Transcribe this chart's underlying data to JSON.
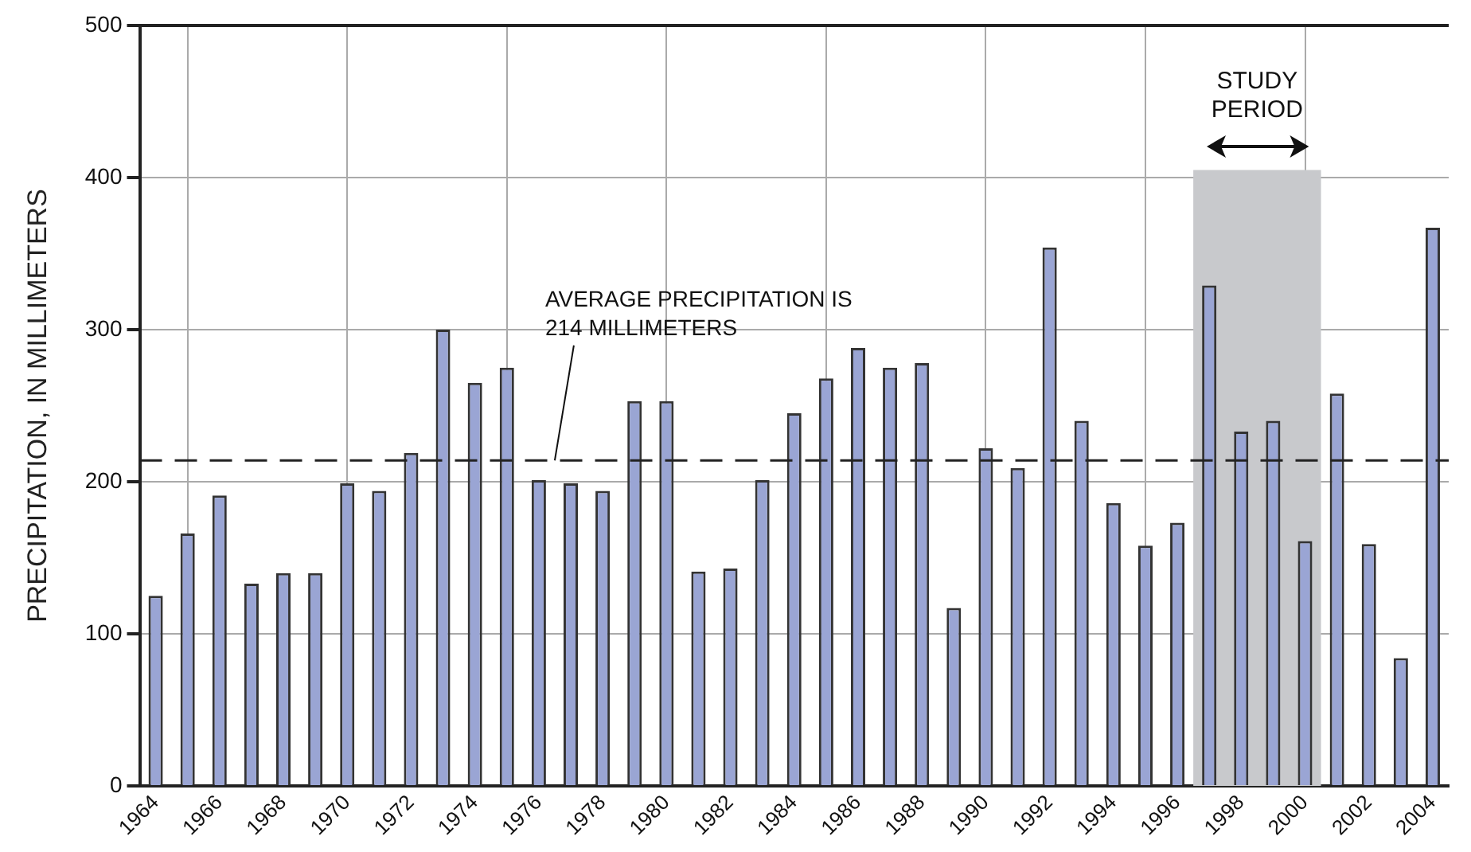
{
  "chart_data": {
    "type": "bar",
    "ylabel": "PRECIPITATION, IN MILLIMETERS",
    "categories": [
      "1964",
      null,
      "1966",
      null,
      "1968",
      null,
      "1970",
      null,
      "1972",
      null,
      "1974",
      null,
      "1976",
      null,
      "1978",
      null,
      "1980",
      null,
      "1982",
      null,
      "1984",
      null,
      "1986",
      null,
      "1988",
      null,
      "1990",
      null,
      "1992",
      null,
      "1994",
      null,
      "1996",
      null,
      "1998",
      null,
      "2000",
      null,
      "2002",
      null,
      "2004"
    ],
    "values": [
      125,
      166,
      191,
      133,
      140,
      140,
      199,
      194,
      219,
      300,
      265,
      275,
      201,
      199,
      194,
      253,
      253,
      141,
      143,
      201,
      245,
      268,
      288,
      275,
      278,
      117,
      222,
      209,
      354,
      240,
      186,
      158,
      173,
      329,
      233,
      240,
      161,
      258,
      159,
      84,
      367
    ],
    "color": "#9aa5d4",
    "ylim": [
      0,
      500
    ],
    "yticks": [
      0,
      100,
      200,
      300,
      400,
      500
    ],
    "grid": true,
    "ref_lines": [
      {
        "axis": "y",
        "value": 214,
        "label": "AVERAGE PRECIPITATION IS 214 MILLIMETERS",
        "color": "#222222",
        "line_style": "dashed"
      }
    ],
    "bands": [
      {
        "axis": "x",
        "from": "1996",
        "to": "2000",
        "label": "STUDY PERIOD",
        "color": "#c8c9cc"
      }
    ]
  }
}
